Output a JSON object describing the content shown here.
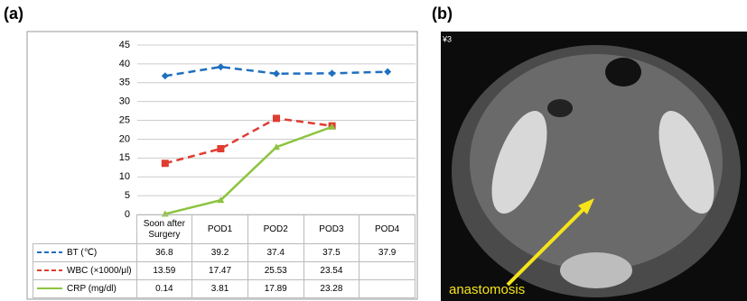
{
  "panel_labels": [
    "(a)",
    "(b)"
  ],
  "chart_data": {
    "type": "line",
    "categories": [
      "Soon after Surgery",
      "POD1",
      "POD2",
      "POD3",
      "POD4"
    ],
    "series": [
      {
        "name": "BT (℃)",
        "color": "#1f6fbf",
        "dash": true,
        "marker": "diamond",
        "values": [
          36.8,
          39.2,
          37.4,
          37.5,
          37.9
        ]
      },
      {
        "name": "WBC (×1000/μl)",
        "color": "#e03c31",
        "dash": true,
        "marker": "square",
        "values": [
          13.59,
          17.47,
          25.53,
          23.54,
          null
        ]
      },
      {
        "name": "CRP (mg/dl)",
        "color": "#8cc43f",
        "dash": false,
        "marker": "triangle",
        "values": [
          0.14,
          3.81,
          17.89,
          23.28,
          null
        ]
      }
    ],
    "ylim": [
      0,
      45
    ],
    "yticks": [
      0,
      5,
      10,
      15,
      20,
      25,
      30,
      35,
      40,
      45
    ],
    "grid": true
  },
  "image": {
    "corner_text": "¥3",
    "annotation": "anastomosis"
  }
}
